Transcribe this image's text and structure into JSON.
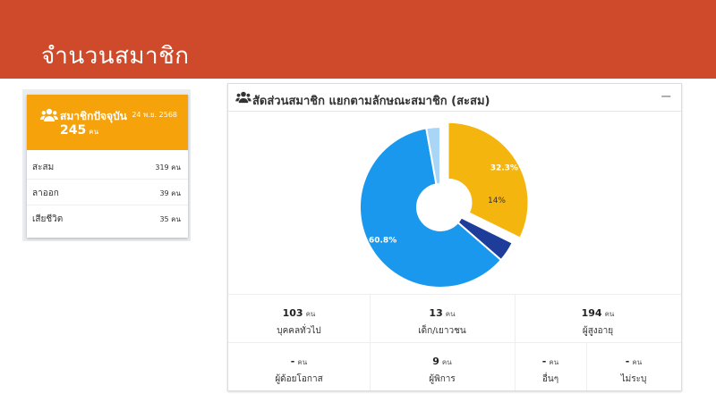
{
  "header": {
    "title": "จำนวนสมาชิก"
  },
  "summary_card": {
    "label": "สมาชิกปัจจุบัน",
    "date": "24 พ.ย. 2568",
    "count": "245",
    "unit": "คน",
    "rows": [
      {
        "label": "สะสม",
        "value": "319 คน"
      },
      {
        "label": "ลาออก",
        "value": "39 คน"
      },
      {
        "label": "เสียชีวิต",
        "value": "35 คน"
      }
    ]
  },
  "panel": {
    "title": "สัดส่วนสมาชิก แยกตามลักษณะสมาชิก (สะสม)",
    "collapse_label": "−"
  },
  "chart_data": {
    "type": "pie",
    "slices": [
      {
        "value": 32.3,
        "label": "32.3%",
        "color": "#f5b50f"
      },
      {
        "value": 4.1,
        "label": "",
        "color": "#1e3d9b"
      },
      {
        "value": 60.8,
        "label": "60.8%",
        "color": "#1a98ee"
      },
      {
        "value": 2.8,
        "label": "",
        "color": "#a9d6f7"
      }
    ],
    "inner_label": "14%",
    "exploded_slice_index": 0
  },
  "stats": {
    "row1": [
      {
        "num": "103",
        "unit": "คน",
        "label": "บุคคลทั่วไป"
      },
      {
        "num": "13",
        "unit": "คน",
        "label": "เด็ก/เยาวชน"
      },
      {
        "num": "194",
        "unit": "คน",
        "label": "ผู้สูงอายุ"
      }
    ],
    "row2": [
      {
        "num": "-",
        "unit": "คน",
        "label": "ผู้ด้อยโอกาส"
      },
      {
        "num": "9",
        "unit": "คน",
        "label": "ผู้พิการ"
      },
      {
        "num": "-",
        "unit": "คน",
        "label": "อื่นๆ"
      },
      {
        "num": "-",
        "unit": "คน",
        "label": "ไม่ระบุ"
      }
    ]
  }
}
